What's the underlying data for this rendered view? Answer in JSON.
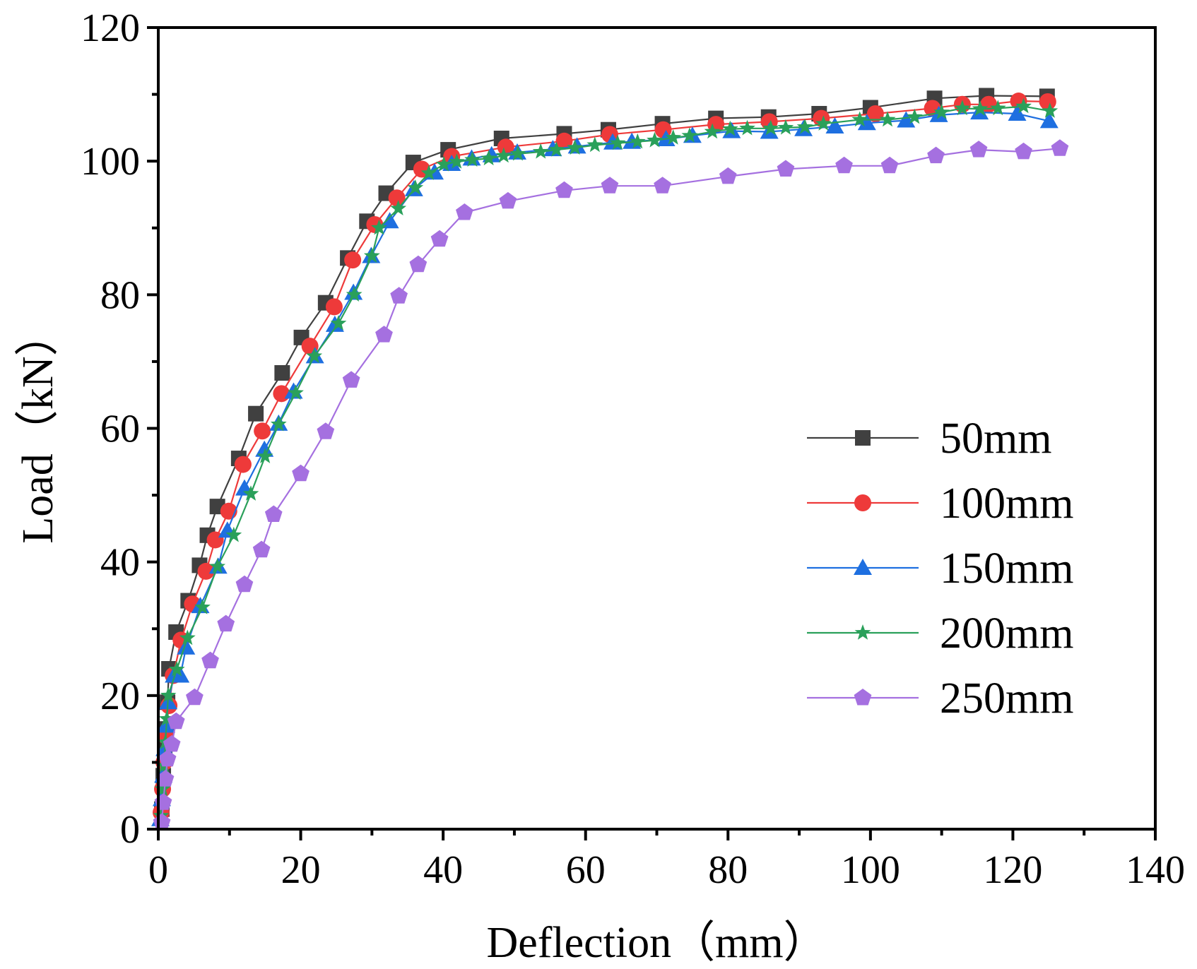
{
  "chart_data": {
    "type": "line",
    "title": "",
    "xlabel": "Deflection（mm）",
    "ylabel": "Load（kN）",
    "xlim": [
      0,
      140
    ],
    "ylim": [
      0,
      120
    ],
    "x_ticks": [
      0,
      20,
      40,
      60,
      80,
      100,
      120,
      140
    ],
    "y_ticks": [
      0,
      20,
      40,
      60,
      80,
      100,
      120
    ],
    "grid": false,
    "legend_position": "right-middle",
    "series": [
      {
        "name": "50mm",
        "color": "#404040",
        "marker": "square",
        "points": [
          [
            0.5,
            3
          ],
          [
            0.7,
            8
          ],
          [
            0.9,
            12
          ],
          [
            1.1,
            15
          ],
          [
            1.3,
            19
          ],
          [
            1.5,
            24
          ],
          [
            2.5,
            29.5
          ],
          [
            4.2,
            34.2
          ],
          [
            5.8,
            39.5
          ],
          [
            6.9,
            44
          ],
          [
            8.3,
            48.3
          ],
          [
            11.3,
            55.5
          ],
          [
            13.7,
            62.2
          ],
          [
            17.4,
            68.3
          ],
          [
            20.1,
            73.6
          ],
          [
            23.5,
            78.8
          ],
          [
            26.6,
            85.5
          ],
          [
            29.3,
            91
          ],
          [
            32,
            95.2
          ],
          [
            35.8,
            99.8
          ],
          [
            40.7,
            101.7
          ],
          [
            48.2,
            103.4
          ],
          [
            57,
            104.1
          ],
          [
            63.2,
            104.7
          ],
          [
            70.8,
            105.6
          ],
          [
            78.3,
            106.4
          ],
          [
            85.7,
            106.6
          ],
          [
            92.8,
            107.1
          ],
          [
            100,
            108
          ],
          [
            109,
            109.4
          ],
          [
            116.3,
            109.8
          ],
          [
            124.8,
            109.7
          ]
        ]
      },
      {
        "name": "100mm",
        "color": "#ee3a3a",
        "marker": "circle",
        "points": [
          [
            0.4,
            2.5
          ],
          [
            0.6,
            6
          ],
          [
            0.8,
            10
          ],
          [
            1,
            14
          ],
          [
            1.5,
            18.5
          ],
          [
            2.1,
            23
          ],
          [
            3.2,
            28.3
          ],
          [
            4.8,
            33.7
          ],
          [
            6.7,
            38.6
          ],
          [
            8,
            43.3
          ],
          [
            9.9,
            47.6
          ],
          [
            11.9,
            54.6
          ],
          [
            14.6,
            59.6
          ],
          [
            17.3,
            65.2
          ],
          [
            21.3,
            72.3
          ],
          [
            24.7,
            78.2
          ],
          [
            27.3,
            85.2
          ],
          [
            30.4,
            90.5
          ],
          [
            33.5,
            94.5
          ],
          [
            37,
            98.8
          ],
          [
            41.2,
            100.7
          ],
          [
            48.8,
            102.1
          ],
          [
            57,
            103
          ],
          [
            63.4,
            104
          ],
          [
            70.9,
            104.7
          ],
          [
            78.3,
            105.5
          ],
          [
            85.8,
            105.9
          ],
          [
            93.1,
            106.4
          ],
          [
            100.7,
            107.1
          ],
          [
            108.7,
            107.9
          ],
          [
            112.9,
            108.5
          ],
          [
            116.6,
            108.5
          ],
          [
            120.8,
            109
          ],
          [
            124.9,
            108.9
          ]
        ]
      },
      {
        "name": "150mm",
        "color": "#1e6fe0",
        "marker": "triangle",
        "points": [
          [
            0.3,
            1.5
          ],
          [
            0.5,
            4.5
          ],
          [
            0.7,
            8
          ],
          [
            0.9,
            12
          ],
          [
            1.1,
            15.5
          ],
          [
            1.4,
            19
          ],
          [
            2.2,
            23
          ],
          [
            3.1,
            23
          ],
          [
            3.9,
            27.2
          ],
          [
            5.9,
            33.4
          ],
          [
            8.4,
            39.3
          ],
          [
            9.7,
            44.7
          ],
          [
            12.1,
            51
          ],
          [
            14.9,
            56.8
          ],
          [
            16.9,
            60.7
          ],
          [
            19,
            65.5
          ],
          [
            22,
            70.8
          ],
          [
            24.8,
            75.5
          ],
          [
            27.4,
            80.3
          ],
          [
            29.9,
            85.8
          ],
          [
            32.5,
            91
          ],
          [
            35.9,
            95.8
          ],
          [
            38.8,
            98.3
          ],
          [
            41.2,
            99.6
          ],
          [
            44,
            100.4
          ],
          [
            46.8,
            100.9
          ],
          [
            50.4,
            101.3
          ],
          [
            55.4,
            101.8
          ],
          [
            58.8,
            102.2
          ],
          [
            63.8,
            102.8
          ],
          [
            66.5,
            102.9
          ],
          [
            71.3,
            103.3
          ],
          [
            75,
            103.8
          ],
          [
            80.5,
            104.5
          ],
          [
            85.8,
            104.4
          ],
          [
            90.6,
            104.8
          ],
          [
            95,
            105.2
          ],
          [
            99.5,
            105.7
          ],
          [
            105,
            106.1
          ],
          [
            109.6,
            106.9
          ],
          [
            115.3,
            107.3
          ],
          [
            120.6,
            107.1
          ],
          [
            125.1,
            106
          ]
        ]
      },
      {
        "name": "200mm",
        "color": "#2aa05a",
        "marker": "star",
        "points": [
          [
            0.4,
            2
          ],
          [
            0.6,
            6
          ],
          [
            0.8,
            9.5
          ],
          [
            1,
            13
          ],
          [
            1.2,
            16.5
          ],
          [
            1.4,
            20
          ],
          [
            2.6,
            23.9
          ],
          [
            4.1,
            28.6
          ],
          [
            6.2,
            33.2
          ],
          [
            8.3,
            39.3
          ],
          [
            10.6,
            44
          ],
          [
            13,
            50.2
          ],
          [
            15,
            55.8
          ],
          [
            16.9,
            60.6
          ],
          [
            19.3,
            65.3
          ],
          [
            21.9,
            70.8
          ],
          [
            25.3,
            75.7
          ],
          [
            27.5,
            80
          ],
          [
            30,
            85.8
          ],
          [
            31,
            90
          ],
          [
            33.7,
            92.9
          ],
          [
            36.1,
            96
          ],
          [
            38,
            98.2
          ],
          [
            40.1,
            99.5
          ],
          [
            41.9,
            99.9
          ],
          [
            44.1,
            100.2
          ],
          [
            46.4,
            100.4
          ],
          [
            48.5,
            100.8
          ],
          [
            50.5,
            101.1
          ],
          [
            53.7,
            101.4
          ],
          [
            55.9,
            101.7
          ],
          [
            58.5,
            102
          ],
          [
            61.3,
            102.4
          ],
          [
            64.5,
            102.7
          ],
          [
            67.3,
            102.9
          ],
          [
            69.7,
            103.1
          ],
          [
            72.3,
            103.5
          ],
          [
            74.6,
            103.8
          ],
          [
            77.8,
            104.4
          ],
          [
            80.3,
            104.8
          ],
          [
            82.7,
            104.9
          ],
          [
            86,
            104.9
          ],
          [
            88.1,
            105
          ],
          [
            90.8,
            105.1
          ],
          [
            93.4,
            105.6
          ],
          [
            98.5,
            106.2
          ],
          [
            102.4,
            106.2
          ],
          [
            106.2,
            106.6
          ],
          [
            110,
            107.3
          ],
          [
            112.9,
            107.9
          ],
          [
            115.4,
            107.8
          ],
          [
            117.9,
            107.9
          ],
          [
            121.5,
            108.2
          ],
          [
            125.2,
            107.5
          ]
        ]
      },
      {
        "name": "250mm",
        "color": "#a570e0",
        "marker": "pentagon",
        "points": [
          [
            0.5,
            1
          ],
          [
            0.7,
            4
          ],
          [
            1,
            7.5
          ],
          [
            1.3,
            10.5
          ],
          [
            1.9,
            12.7
          ],
          [
            2.5,
            16.1
          ],
          [
            5.1,
            19.7
          ],
          [
            7.3,
            25.2
          ],
          [
            9.5,
            30.7
          ],
          [
            12.1,
            36.6
          ],
          [
            14.5,
            41.8
          ],
          [
            16.2,
            47.1
          ],
          [
            20,
            53.2
          ],
          [
            23.5,
            59.5
          ],
          [
            27.1,
            67.2
          ],
          [
            31.7,
            74
          ],
          [
            33.8,
            79.8
          ],
          [
            36.5,
            84.5
          ],
          [
            39.5,
            88.3
          ],
          [
            43,
            92.3
          ],
          [
            49.1,
            94
          ],
          [
            57,
            95.6
          ],
          [
            63.4,
            96.3
          ],
          [
            70.8,
            96.3
          ],
          [
            80,
            97.7
          ],
          [
            88.1,
            98.8
          ],
          [
            96.3,
            99.3
          ],
          [
            102.7,
            99.3
          ],
          [
            109.2,
            100.8
          ],
          [
            115.2,
            101.7
          ],
          [
            121.5,
            101.4
          ],
          [
            126.6,
            101.9
          ]
        ]
      }
    ]
  }
}
